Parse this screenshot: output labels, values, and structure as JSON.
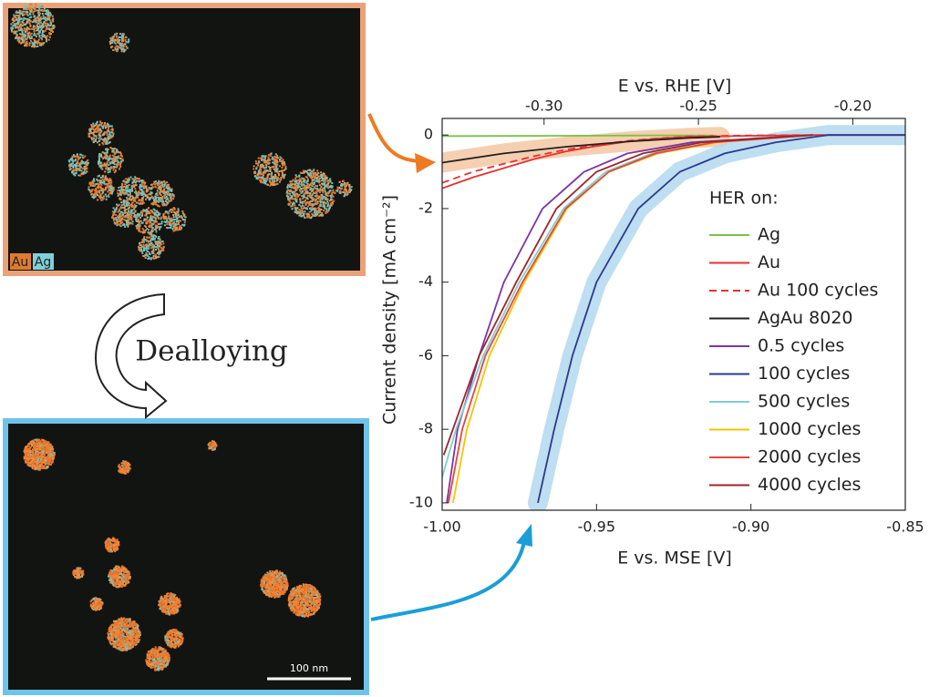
{
  "chart_data": {
    "type": "line",
    "xlabel": "E vs. MSE [V]",
    "x2label": "E vs. RHE [V]",
    "ylabel": "Current density [mA cm⁻²]",
    "legend_title": "HER on:",
    "xlim": [
      -1.0,
      -0.85
    ],
    "xticks": [
      {
        "value": -1.0,
        "label": "-1.00"
      },
      {
        "value": -0.95,
        "label": "-0.95"
      },
      {
        "value": -0.9,
        "label": "-0.90"
      },
      {
        "value": -0.85,
        "label": "-0.85"
      }
    ],
    "x2lim": [
      -0.333,
      -0.183
    ],
    "x2ticks": [
      {
        "value": -0.3,
        "label": "-0.30"
      },
      {
        "value": -0.25,
        "label": "-0.25"
      },
      {
        "value": -0.2,
        "label": "-0.20"
      }
    ],
    "ylim": [
      -10.2,
      0.45
    ],
    "yticks": [
      0,
      -2,
      -4,
      -6,
      -8,
      -10
    ],
    "series": [
      {
        "name": "Ag",
        "color": "#7ac143",
        "x": [
          -1.0,
          -0.96,
          -0.93,
          -0.912
        ],
        "values": [
          -0.03,
          -0.02,
          -0.01,
          -0.01
        ]
      },
      {
        "name": "Au",
        "color": "#e8312f",
        "x": [
          -1.0,
          -0.99,
          -0.98,
          -0.97,
          -0.96,
          -0.95,
          -0.94,
          -0.93,
          -0.92,
          -0.9,
          -0.88,
          -0.85
        ],
        "values": [
          -1.45,
          -1.15,
          -0.9,
          -0.65,
          -0.45,
          -0.3,
          -0.18,
          -0.1,
          -0.05,
          -0.02,
          0,
          0
        ]
      },
      {
        "name": "Au 100 cycles",
        "color": "#e8312f",
        "dash": true,
        "x": [
          -1.0,
          -0.99,
          -0.98,
          -0.97,
          -0.96,
          -0.95,
          -0.94,
          -0.93,
          -0.92,
          -0.9,
          -0.88
        ],
        "values": [
          -1.3,
          -1.0,
          -0.78,
          -0.57,
          -0.4,
          -0.27,
          -0.16,
          -0.09,
          -0.04,
          -0.01,
          0
        ]
      },
      {
        "name": "AgAu 8020",
        "color": "#222222",
        "highlight": "#f5c7a3",
        "x": [
          -1.0,
          -0.98,
          -0.96,
          -0.94,
          -0.92,
          -0.91
        ],
        "values": [
          -0.75,
          -0.5,
          -0.32,
          -0.18,
          -0.08,
          -0.05
        ]
      },
      {
        "name": "0.5 cycles",
        "color": "#7b35a8",
        "x": [
          -0.9985,
          -0.995,
          -0.988,
          -0.98,
          -0.9675,
          -0.954,
          -0.94,
          -0.919,
          -0.88
        ],
        "values": [
          -10,
          -8,
          -6,
          -4,
          -2,
          -1,
          -0.5,
          -0.2,
          0
        ]
      },
      {
        "name": "100 cycles",
        "color": "#2b3a8f",
        "highlight": "#b3d8ef",
        "x": [
          -0.969,
          -0.9637,
          -0.9578,
          -0.95,
          -0.9365,
          -0.923,
          -0.9085,
          -0.892,
          -0.875,
          -0.85
        ],
        "values": [
          -10,
          -8,
          -6,
          -4,
          -2,
          -1,
          -0.5,
          -0.2,
          0,
          0
        ]
      },
      {
        "name": "500 cycles",
        "color": "#7fcfd0",
        "x": [
          -1.0,
          -0.9955,
          -0.9867,
          -0.975,
          -0.9607,
          -0.947,
          -0.932,
          -0.913,
          -0.88
        ],
        "values": [
          -9.3,
          -8,
          -6,
          -4,
          -2,
          -1,
          -0.5,
          -0.2,
          0
        ]
      },
      {
        "name": "1000 cycles",
        "color": "#f2c500",
        "x": [
          -0.9965,
          -0.992,
          -0.9847,
          -0.9734,
          -0.9596,
          -0.946,
          -0.93,
          -0.911,
          -0.88
        ],
        "values": [
          -10,
          -8,
          -6,
          -4,
          -2,
          -1,
          -0.5,
          -0.2,
          0
        ]
      },
      {
        "name": "2000 cycles",
        "color": "#e8453c",
        "x": [
          -0.998,
          -0.9935,
          -0.986,
          -0.974,
          -0.96,
          -0.946,
          -0.931,
          -0.912,
          -0.88
        ],
        "values": [
          -10,
          -8,
          -6,
          -4,
          -2,
          -1,
          -0.5,
          -0.2,
          0
        ]
      },
      {
        "name": "4000 cycles",
        "color": "#a0242a",
        "x": [
          -0.9995,
          -0.988,
          -0.976,
          -0.963,
          -0.95,
          -0.935,
          -0.916,
          -0.88
        ],
        "values": [
          -8.7,
          -6,
          -4,
          -2,
          -1,
          -0.5,
          -0.2,
          0
        ]
      }
    ]
  },
  "panels": {
    "map_labels": [
      "Au",
      "Ag"
    ],
    "arrow_label": "Dealloying",
    "scale_bar": "100 nm"
  }
}
